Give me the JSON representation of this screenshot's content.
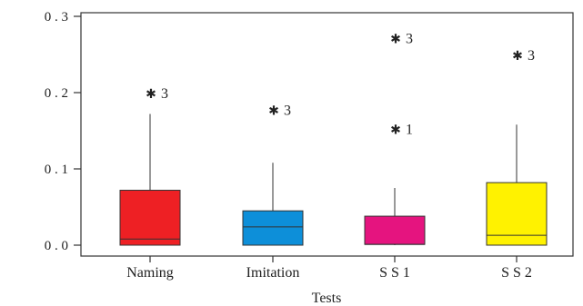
{
  "chart_data": {
    "type": "box",
    "xlabel": "Tests",
    "ylabel": "",
    "ylim": [
      -0.015,
      0.305
    ],
    "y_ticks": [
      {
        "value": 0.0,
        "label": "0 . 0"
      },
      {
        "value": 0.1,
        "label": "0 . 1"
      },
      {
        "value": 0.2,
        "label": "0 . 2"
      },
      {
        "value": 0.3,
        "label": "0 . 3"
      }
    ],
    "categories": [
      "Naming",
      "Imitation",
      "S S 1",
      "S S 2"
    ],
    "boxes": [
      {
        "category": "Naming",
        "color": "#ee2024",
        "min": 0.0,
        "q1": 0.0,
        "median": 0.008,
        "q3": 0.072,
        "max": 0.172,
        "outliers": [
          {
            "value": 0.2,
            "label": "3"
          }
        ]
      },
      {
        "category": "Imitation",
        "color": "#0d8fd9",
        "min": 0.0,
        "q1": 0.0,
        "median": 0.024,
        "q3": 0.045,
        "max": 0.108,
        "outliers": [
          {
            "value": 0.178,
            "label": "3"
          }
        ]
      },
      {
        "category": "S S 1",
        "color": "#e5147f",
        "min": 0.0,
        "q1": 0.001,
        "median": 0.001,
        "q3": 0.038,
        "max": 0.075,
        "outliers": [
          {
            "value": 0.272,
            "label": "3"
          },
          {
            "value": 0.153,
            "label": "1"
          }
        ]
      },
      {
        "category": "S S 2",
        "color": "#fff200",
        "min": 0.0,
        "q1": 0.0,
        "median": 0.013,
        "q3": 0.082,
        "max": 0.158,
        "outliers": [
          {
            "value": 0.25,
            "label": "3"
          }
        ]
      }
    ]
  }
}
